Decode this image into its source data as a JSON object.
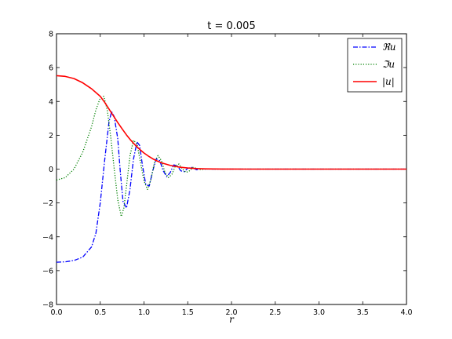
{
  "chart_data": {
    "type": "line",
    "title": "t = 0.005",
    "xlabel": "r",
    "ylabel": "",
    "xlim": [
      0,
      4
    ],
    "ylim": [
      -8,
      8
    ],
    "x_ticks": [
      "0.0",
      "0.5",
      "1.0",
      "1.5",
      "2.0",
      "2.5",
      "3.0",
      "3.5",
      "4.0"
    ],
    "y_ticks": [
      "8",
      "6",
      "4",
      "2",
      "0",
      "−2",
      "−4",
      "−6",
      "−8"
    ],
    "grid": false,
    "legend_position": "top-right",
    "series": [
      {
        "name": "ℜu",
        "style": "dash-dot",
        "color": "#0000ff",
        "x": [
          0.0,
          0.1,
          0.2,
          0.3,
          0.4,
          0.45,
          0.5,
          0.55,
          0.6,
          0.63,
          0.66,
          0.7,
          0.73,
          0.76,
          0.8,
          0.84,
          0.88,
          0.92,
          0.95,
          0.98,
          1.02,
          1.06,
          1.1,
          1.14,
          1.18,
          1.22,
          1.26,
          1.3,
          1.34,
          1.38,
          1.42,
          1.46,
          1.5,
          1.55,
          1.6,
          1.65,
          1.7,
          1.8,
          1.9,
          2.0,
          2.5,
          3.0,
          3.5,
          4.0
        ],
        "y": [
          -5.5,
          -5.48,
          -5.4,
          -5.2,
          -4.6,
          -3.8,
          -2.0,
          0.5,
          2.8,
          3.4,
          3.1,
          1.8,
          -0.2,
          -1.9,
          -2.3,
          -1.2,
          0.6,
          1.6,
          1.4,
          0.3,
          -0.9,
          -1.0,
          -0.1,
          0.6,
          0.5,
          -0.1,
          -0.45,
          -0.2,
          0.25,
          0.2,
          -0.1,
          -0.15,
          0.05,
          0.1,
          -0.04,
          0.02,
          0.0,
          0.0,
          0.0,
          0.0,
          0.0,
          0.0,
          0.0,
          0.0
        ]
      },
      {
        "name": "ℑu",
        "style": "dotted",
        "color": "#008000",
        "x": [
          0.0,
          0.1,
          0.2,
          0.3,
          0.4,
          0.45,
          0.5,
          0.54,
          0.58,
          0.62,
          0.66,
          0.7,
          0.74,
          0.77,
          0.8,
          0.84,
          0.88,
          0.92,
          0.96,
          1.0,
          1.04,
          1.08,
          1.12,
          1.16,
          1.2,
          1.24,
          1.28,
          1.32,
          1.36,
          1.4,
          1.44,
          1.48,
          1.52,
          1.56,
          1.6,
          1.65,
          1.7,
          1.8,
          2.0,
          2.5,
          3.0,
          3.5,
          4.0
        ],
        "y": [
          -0.65,
          -0.5,
          0.0,
          1.0,
          2.5,
          3.5,
          4.2,
          4.3,
          3.5,
          1.9,
          0.0,
          -1.8,
          -2.8,
          -2.3,
          -1.0,
          0.8,
          1.7,
          1.5,
          0.4,
          -0.7,
          -1.2,
          -0.6,
          0.4,
          0.8,
          0.5,
          -0.2,
          -0.5,
          -0.3,
          0.2,
          0.3,
          0.0,
          -0.2,
          -0.1,
          0.1,
          0.05,
          -0.03,
          0.0,
          0.0,
          0.0,
          0.0,
          0.0,
          0.0,
          0.0
        ]
      },
      {
        "name": "|u|",
        "style": "solid",
        "color": "#ff0000",
        "x": [
          0.0,
          0.1,
          0.2,
          0.3,
          0.4,
          0.5,
          0.55,
          0.6,
          0.65,
          0.7,
          0.75,
          0.8,
          0.85,
          0.9,
          0.95,
          1.0,
          1.05,
          1.1,
          1.15,
          1.2,
          1.3,
          1.4,
          1.5,
          1.6,
          1.7,
          1.8,
          1.9,
          2.0,
          2.2,
          2.5,
          3.0,
          3.5,
          4.0
        ],
        "y": [
          5.52,
          5.48,
          5.35,
          5.1,
          4.75,
          4.3,
          3.95,
          3.55,
          3.15,
          2.75,
          2.38,
          2.02,
          1.7,
          1.42,
          1.17,
          0.95,
          0.77,
          0.61,
          0.48,
          0.37,
          0.22,
          0.12,
          0.065,
          0.033,
          0.016,
          0.008,
          0.004,
          0.002,
          0.0,
          0.0,
          0.0,
          0.0,
          0.0
        ]
      }
    ]
  }
}
